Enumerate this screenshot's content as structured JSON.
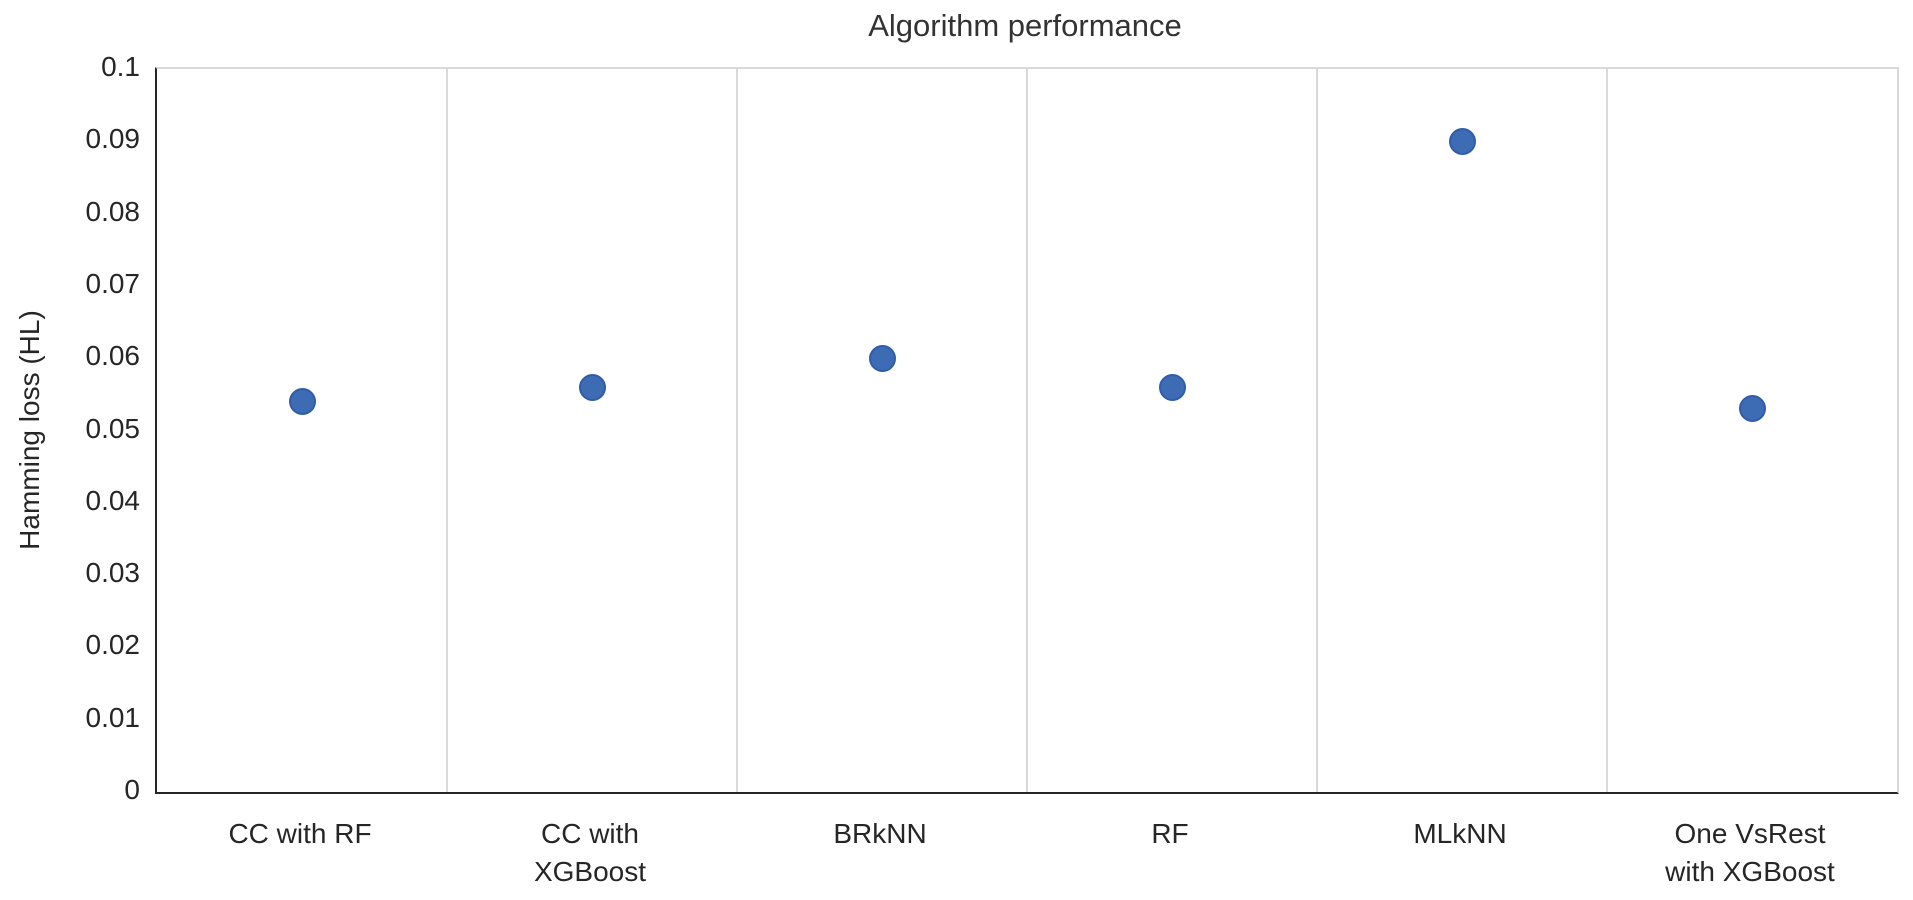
{
  "chart_data": {
    "type": "scatter",
    "title": "Algorithm performance",
    "xlabel": "",
    "ylabel": "Hamming loss (HL)",
    "categories": [
      "CC with RF",
      "CC with\nXGBoost",
      "BRkNN",
      "RF",
      "MLkNN",
      "One VsRest\nwith XGBoost"
    ],
    "values": [
      0.054,
      0.056,
      0.06,
      0.056,
      0.09,
      0.053
    ],
    "ylim": [
      0,
      0.1
    ],
    "ytick_step": 0.01,
    "ytick_labels": [
      "0",
      "0.01",
      "0.02",
      "0.03",
      "0.04",
      "0.05",
      "0.06",
      "0.07",
      "0.08",
      "0.09",
      "0.1"
    ],
    "grid": "vertical-major",
    "legend": "none",
    "colors": {
      "point_fill": "#3d6cb4",
      "point_edge": "#2f5da8",
      "gridline": "#d9d9d9",
      "axis": "#262626",
      "text": "#262626"
    }
  }
}
